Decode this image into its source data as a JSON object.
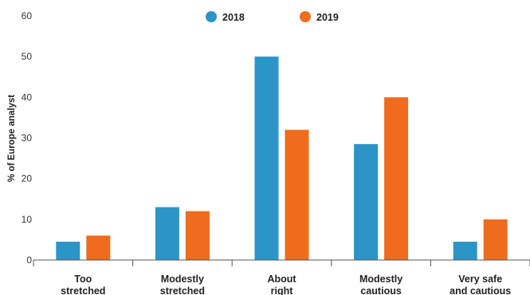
{
  "chart_data": {
    "type": "bar",
    "categories": [
      [
        "Too",
        "stretched"
      ],
      [
        "Modestly",
        "stretched"
      ],
      [
        "About",
        "right"
      ],
      [
        "Modestly",
        "cautious"
      ],
      [
        "Very safe",
        "and cautious"
      ]
    ],
    "series": [
      {
        "name": "2018",
        "color": "#2b95c8",
        "values": [
          4.5,
          13,
          50,
          28.5,
          4.5
        ]
      },
      {
        "name": "2019",
        "color": "#ef6b1e",
        "values": [
          6,
          12,
          32,
          40,
          10
        ]
      }
    ],
    "ylabel": "% of Europe analyst",
    "ylim": [
      0,
      60
    ],
    "yticks": [
      0,
      10,
      20,
      30,
      40,
      50,
      60
    ],
    "grid": false,
    "legend": "top-center"
  }
}
